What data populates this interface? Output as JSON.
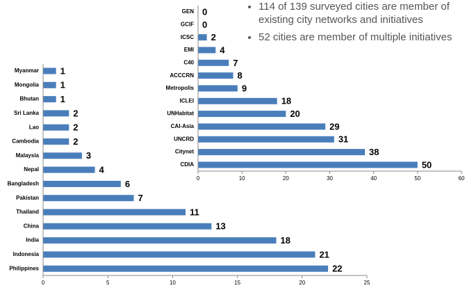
{
  "chart_data": [
    {
      "type": "hbar",
      "color": "#4a7ebb",
      "categories": [
        "Myanmar",
        "Mongolia",
        "Bhutan",
        "Sri Lanka",
        "Lao",
        "Cambodia",
        "Malaysia",
        "Nepal",
        "Bangladesh",
        "Pakistan",
        "Thailand",
        "China",
        "India",
        "Indonesia",
        "Philippines"
      ],
      "values": [
        1,
        1,
        1,
        2,
        2,
        2,
        3,
        4,
        6,
        7,
        11,
        13,
        18,
        21,
        22
      ],
      "xlim": [
        0,
        25
      ],
      "xticks": [
        0,
        5,
        10,
        15,
        20,
        25
      ]
    },
    {
      "type": "hbar",
      "color": "#4a7ebb",
      "categories": [
        "GEN",
        "GCIF",
        "ICSC",
        "EMI",
        "C40",
        "ACCCRN",
        "Metropolis",
        "ICLEI",
        "UNHabitat",
        "CAI-Asia",
        "UNCRD",
        "Citynet",
        "CDIA"
      ],
      "values": [
        0,
        0,
        2,
        4,
        7,
        8,
        9,
        18,
        20,
        29,
        31,
        38,
        50
      ],
      "xlim": [
        0,
        60
      ],
      "xticks": [
        0,
        10,
        20,
        30,
        40,
        50,
        60
      ],
      "annotations": [
        "114 of 139 surveyed cities are member of existing city networks and initiatives",
        "52 cities are member of multiple initiatives"
      ]
    }
  ]
}
